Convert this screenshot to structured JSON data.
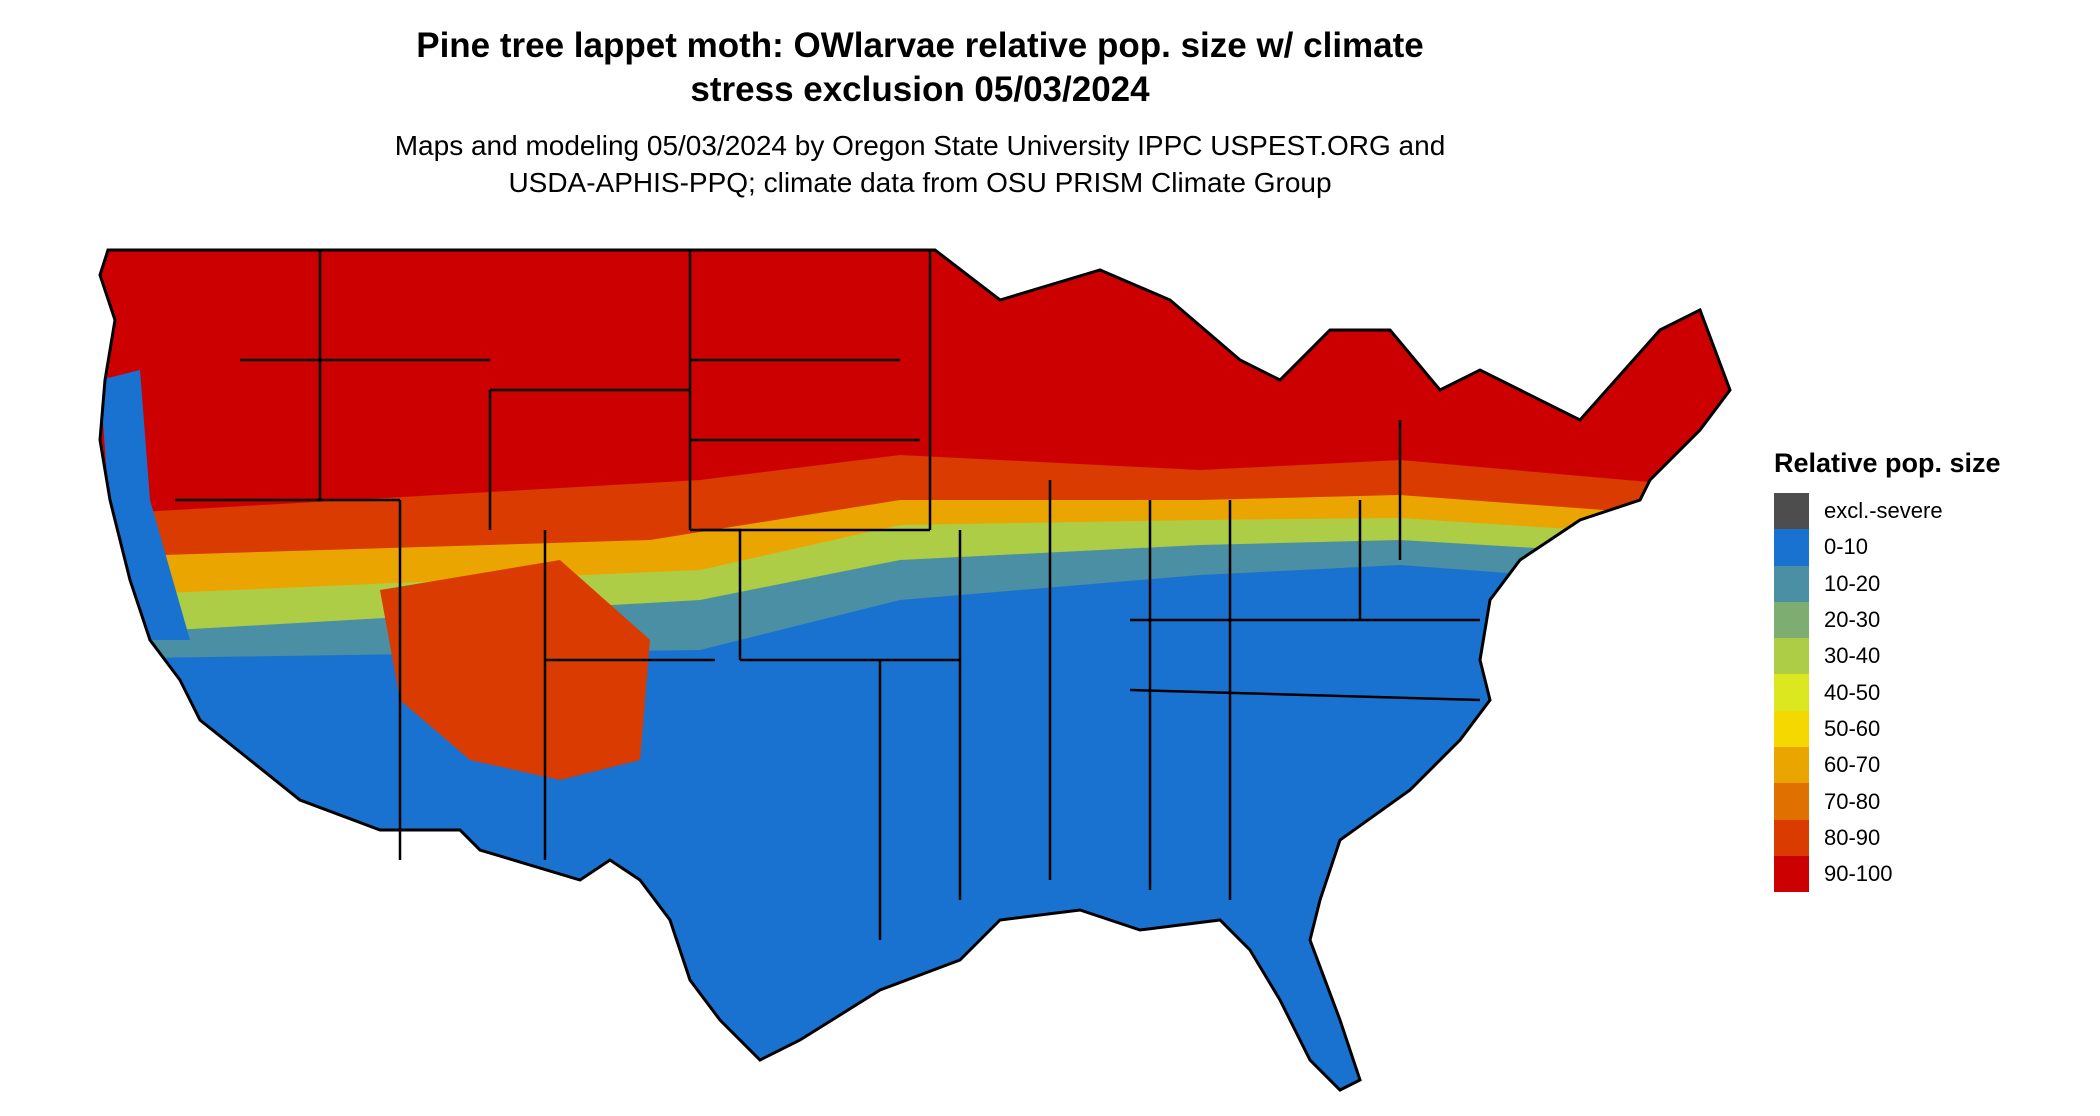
{
  "title_line1": "Pine tree lappet moth: OWlarvae relative pop. size w/ climate",
  "title_line2": "stress exclusion 05/03/2024",
  "subtitle_line1": "Maps and modeling 05/03/2024 by Oregon State University IPPC USPEST.ORG and",
  "subtitle_line2": "USDA-APHIS-PPQ; climate data from OSU PRISM Climate Group",
  "legend": {
    "title": "Relative pop. size",
    "items": [
      {
        "label": "excl.-severe",
        "color": "#4d4d4d"
      },
      {
        "label": "0-10",
        "color": "#1a72d0"
      },
      {
        "label": "10-20",
        "color": "#4a8fa3"
      },
      {
        "label": "20-30",
        "color": "#7ead72"
      },
      {
        "label": "30-40",
        "color": "#aecd46"
      },
      {
        "label": "40-50",
        "color": "#dbe81f"
      },
      {
        "label": "50-60",
        "color": "#f5d800"
      },
      {
        "label": "60-70",
        "color": "#eaa500"
      },
      {
        "label": "70-80",
        "color": "#e07000"
      },
      {
        "label": "80-90",
        "color": "#d93b00"
      },
      {
        "label": "90-100",
        "color": "#cc0000"
      }
    ]
  }
}
